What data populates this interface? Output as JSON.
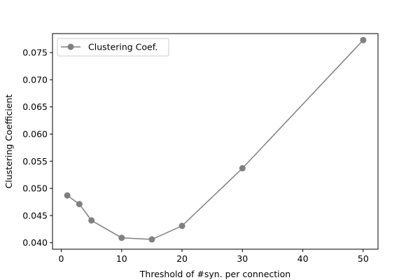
{
  "chart_data": {
    "type": "line",
    "title": "",
    "xlabel": "Threshold of #syn. per connection",
    "ylabel": "Clustering Coefficient",
    "xlim": [
      -1.45,
      52.45
    ],
    "ylim": [
      0.0388,
      0.0785
    ],
    "x_ticks": [
      0,
      10,
      20,
      30,
      40,
      50
    ],
    "x_tick_labels": [
      "0",
      "10",
      "20",
      "30",
      "40",
      "50"
    ],
    "y_ticks": [
      0.04,
      0.045,
      0.05,
      0.055,
      0.06,
      0.065,
      0.07,
      0.075
    ],
    "y_tick_labels": [
      "0.040",
      "0.045",
      "0.050",
      "0.055",
      "0.060",
      "0.065",
      "0.070",
      "0.075"
    ],
    "grid": false,
    "legend_position": "upper left",
    "series": [
      {
        "name": "Clustering Coef.",
        "color": "#808080",
        "marker": "circle",
        "x": [
          1,
          3,
          5,
          10,
          15,
          20,
          30,
          50
        ],
        "y": [
          0.0487,
          0.0471,
          0.0441,
          0.0409,
          0.0406,
          0.0431,
          0.0537,
          0.0773
        ]
      }
    ]
  }
}
